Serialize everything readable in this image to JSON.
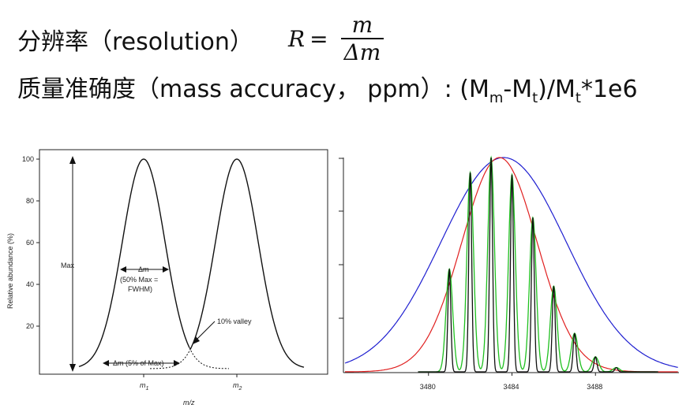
{
  "heading": {
    "resolution_label": "分辨率（resolution）",
    "formula_lhs": "R",
    "formula_eq": "=",
    "formula_num": "m",
    "formula_den": "Δm",
    "accuracy_label": "质量准确度（mass accuracy， ppm）: (M",
    "sub_m": "m",
    "dash": "-M",
    "sub_t1": "t",
    "close": ")/M",
    "sub_t2": "t",
    "tail": "*1e6"
  },
  "left_figure": {
    "ylabel": "Relative abundance (%)",
    "xlabel": "m/z",
    "yticks": [
      "100",
      "80",
      "60",
      "40",
      "20"
    ],
    "peak1_label": "m",
    "peak1_sub": "1",
    "peak2_label": "m",
    "peak2_sub": "2",
    "max_label": "Max",
    "dm_label": "Δm",
    "fwhm_line1": "(50% Max =",
    "fwhm_line2": "FWHM)",
    "valley_label": "10% valley",
    "dm5_label": "Δm (5% of Max)"
  },
  "chart_data": {
    "type": "line",
    "title": "",
    "xlabel": "",
    "ylabel": "",
    "xticks": [
      "3480",
      "3484",
      "3488"
    ],
    "xlim": [
      3476,
      3492
    ],
    "series": [
      {
        "color": "#1f1fd0",
        "type": "envelope",
        "center": 3483.6,
        "width_sd": 3.0
      },
      {
        "color": "#e02020",
        "type": "envelope",
        "center": 3483.4,
        "width_sd": 1.8
      },
      {
        "color": "#20c020",
        "type": "isotope-peaks"
      },
      {
        "color": "#111111",
        "type": "isotope-peaks"
      }
    ],
    "isotope_peaks": [
      {
        "x": 3481.0,
        "y": 0.48
      },
      {
        "x": 3482.0,
        "y": 0.93
      },
      {
        "x": 3483.0,
        "y": 1.0
      },
      {
        "x": 3484.0,
        "y": 0.92
      },
      {
        "x": 3485.0,
        "y": 0.72
      },
      {
        "x": 3486.0,
        "y": 0.4
      },
      {
        "x": 3487.0,
        "y": 0.18
      },
      {
        "x": 3488.0,
        "y": 0.07
      },
      {
        "x": 3489.0,
        "y": 0.02
      }
    ]
  },
  "colors": {
    "blue": "#1f1fd0",
    "red": "#e02020",
    "green": "#20c020",
    "black": "#111111"
  }
}
